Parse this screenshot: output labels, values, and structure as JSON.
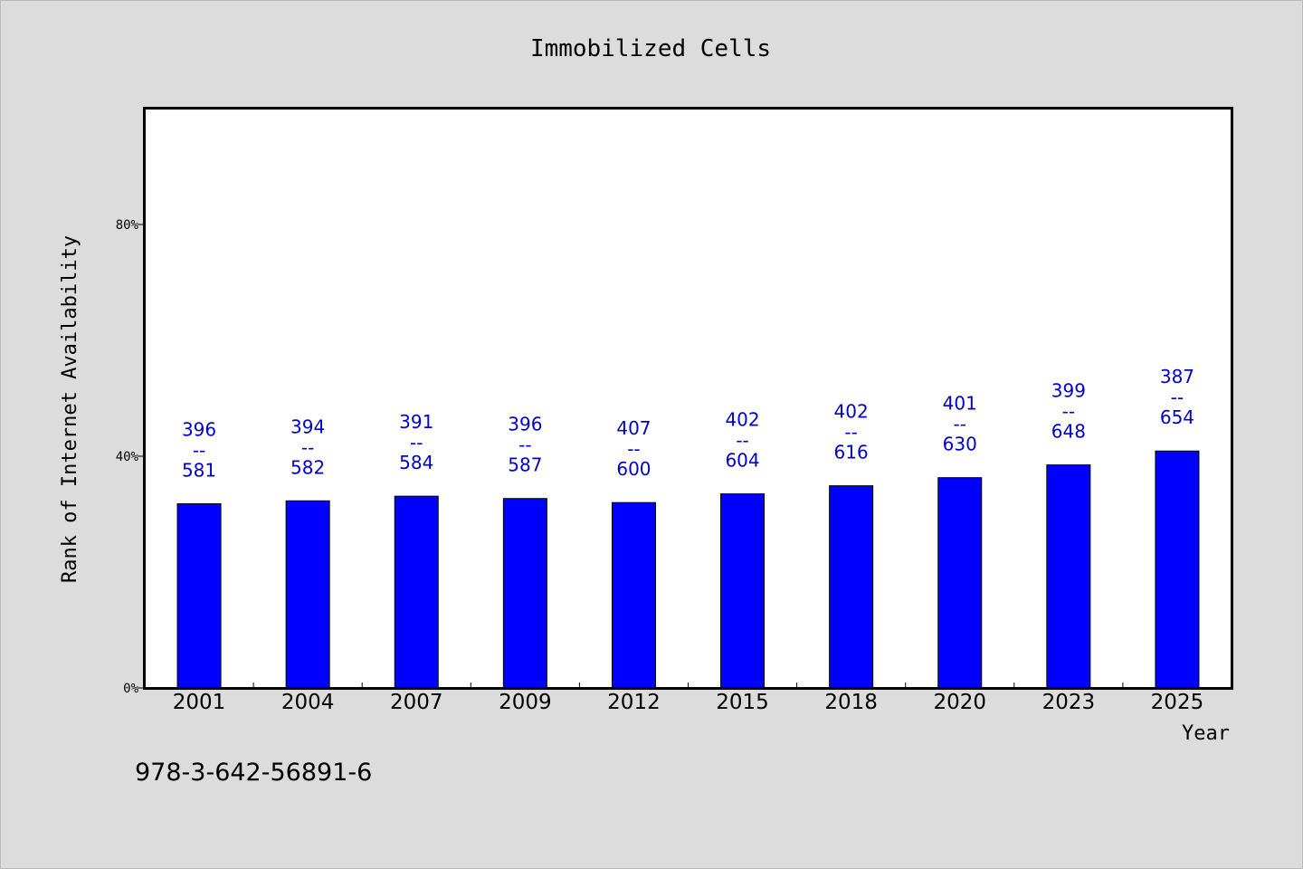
{
  "chart_data": {
    "type": "bar",
    "title": "Immobilized Cells",
    "xlabel": "Year",
    "ylabel": "Rank of Internet Availability",
    "categories": [
      "2001",
      "2004",
      "2007",
      "2009",
      "2012",
      "2015",
      "2018",
      "2020",
      "2023",
      "2025"
    ],
    "values": [
      31.8,
      32.3,
      33.1,
      32.7,
      32.0,
      33.5,
      34.9,
      36.3,
      38.5,
      40.9
    ],
    "data_labels": [
      {
        "top": "396",
        "sep": "--",
        "bottom": "581"
      },
      {
        "top": "394",
        "sep": "--",
        "bottom": "582"
      },
      {
        "top": "391",
        "sep": "--",
        "bottom": "584"
      },
      {
        "top": "396",
        "sep": "--",
        "bottom": "587"
      },
      {
        "top": "407",
        "sep": "--",
        "bottom": "600"
      },
      {
        "top": "402",
        "sep": "--",
        "bottom": "604"
      },
      {
        "top": "402",
        "sep": "--",
        "bottom": "616"
      },
      {
        "top": "401",
        "sep": "--",
        "bottom": "630"
      },
      {
        "top": "399",
        "sep": "--",
        "bottom": "648"
      },
      {
        "top": "387",
        "sep": "--",
        "bottom": "654"
      }
    ],
    "ylim": [
      0,
      100
    ],
    "yticks": [
      0,
      40,
      80
    ],
    "ytick_labels": [
      "0%",
      "40%",
      "80%"
    ],
    "grid": false,
    "legend": "none",
    "colors": {
      "bar": "#0000ff",
      "bar_edge": "#000000",
      "data_label": "#0000cc",
      "plot_bg": "#ffffff",
      "page_bg": "#dcdcdc"
    }
  },
  "footer": {
    "isbn": "978-3-642-56891-6"
  }
}
